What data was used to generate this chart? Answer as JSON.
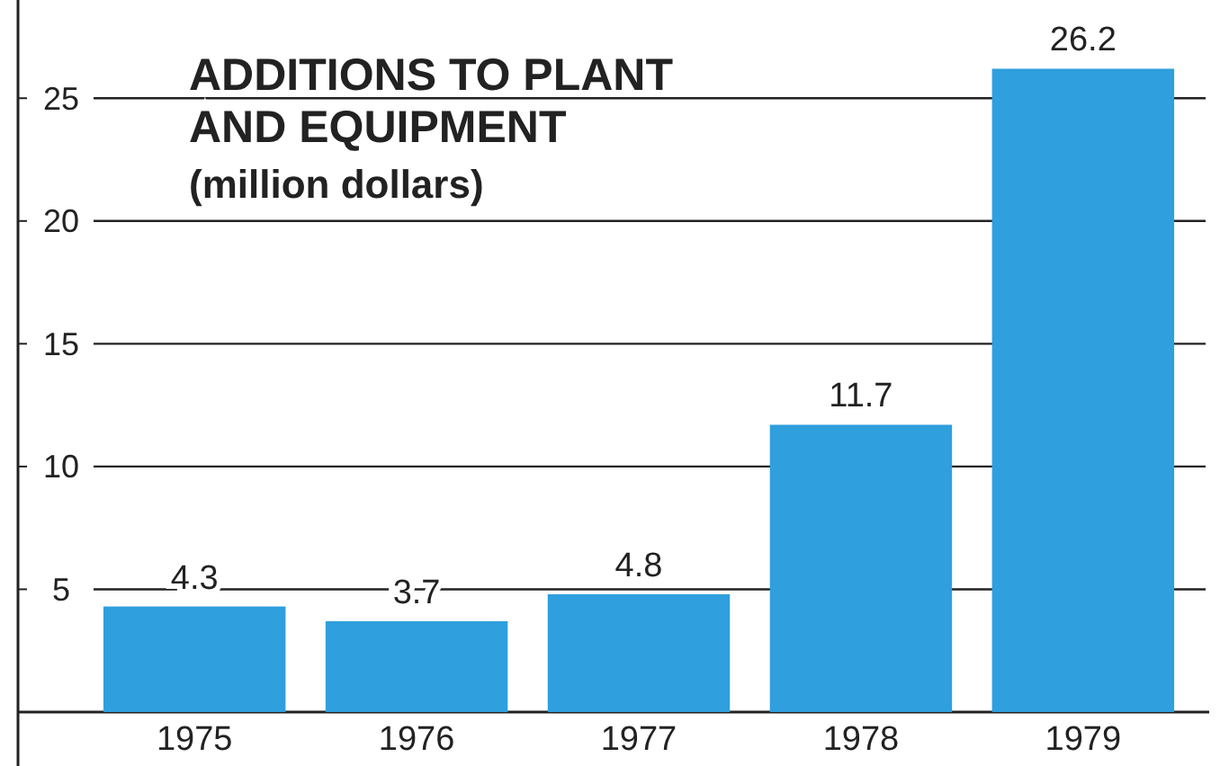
{
  "chart_data": {
    "type": "bar",
    "title": "ADDITIONS TO PLANT\nAND EQUIPMENT",
    "subtitle": "(million dollars)",
    "categories": [
      "1975",
      "1976",
      "1977",
      "1978",
      "1979"
    ],
    "values": [
      4.3,
      3.7,
      4.8,
      11.7,
      26.2
    ],
    "color": "#2f9fde",
    "ylim": [
      0,
      29
    ],
    "yticks": [
      5,
      10,
      15,
      20,
      25
    ],
    "grid": "y",
    "data_labels": true
  }
}
